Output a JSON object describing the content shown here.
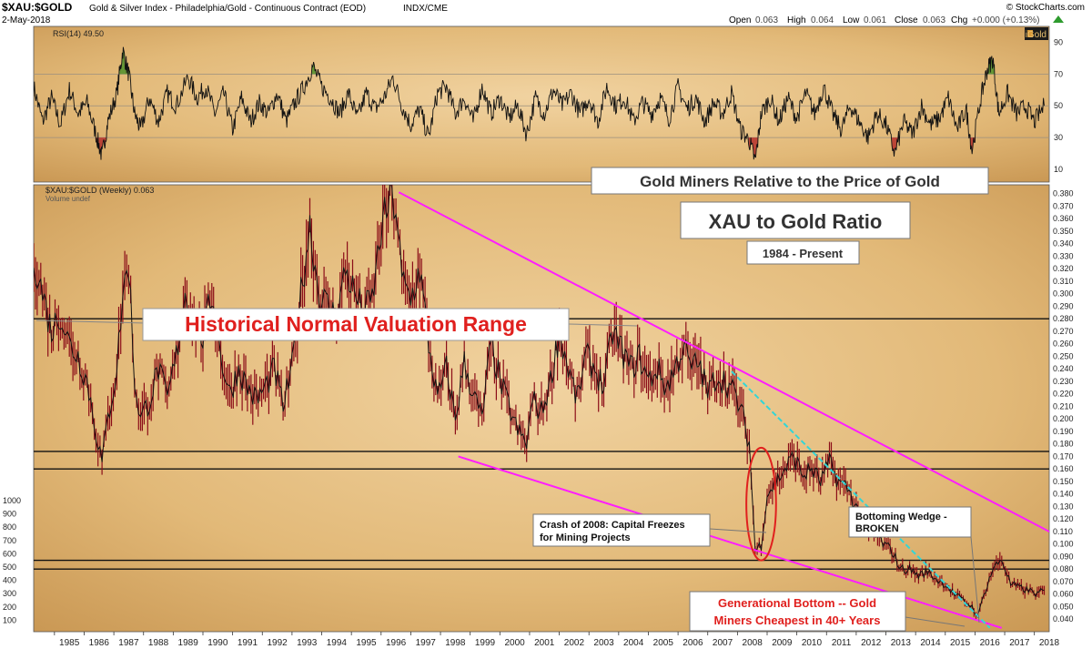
{
  "header": {
    "symbol": "$XAU:$GOLD",
    "description": "Gold & Silver Index - Philadelphia/Gold - Continuous Contract (EOD)",
    "exchange": "INDX/CME",
    "date": "2-May-2018",
    "source": "© StockCharts.com",
    "open_label": "Open",
    "open": "0.063",
    "high_label": "High",
    "high": "0.064",
    "low_label": "Low",
    "low": "0.061",
    "close_label": "Close",
    "close": "0.063",
    "chg_label": "Chg",
    "chg": "+0.000 (+0.13%)",
    "logo": "iGold"
  },
  "rsi_panel": {
    "label": "RSI(14) 49.50",
    "axis_ticks": [
      90,
      70,
      50,
      30,
      10
    ],
    "reference_lines": [
      70,
      50,
      30
    ],
    "control_points": [
      [
        1984.3,
        62
      ],
      [
        1984.6,
        40
      ],
      [
        1984.9,
        55
      ],
      [
        1985.2,
        38
      ],
      [
        1985.5,
        60
      ],
      [
        1985.8,
        45
      ],
      [
        1986.1,
        52
      ],
      [
        1986.4,
        32
      ],
      [
        1986.6,
        18
      ],
      [
        1986.8,
        40
      ],
      [
        1987.1,
        58
      ],
      [
        1987.3,
        85
      ],
      [
        1987.5,
        70
      ],
      [
        1987.7,
        45
      ],
      [
        1987.9,
        35
      ],
      [
        1988.2,
        55
      ],
      [
        1988.5,
        40
      ],
      [
        1988.8,
        58
      ],
      [
        1989.1,
        50
      ],
      [
        1989.5,
        68
      ],
      [
        1989.8,
        55
      ],
      [
        1990.1,
        62
      ],
      [
        1990.4,
        45
      ],
      [
        1990.7,
        58
      ],
      [
        1991.0,
        35
      ],
      [
        1991.3,
        55
      ],
      [
        1991.6,
        40
      ],
      [
        1991.9,
        52
      ],
      [
        1992.2,
        45
      ],
      [
        1992.5,
        58
      ],
      [
        1992.8,
        40
      ],
      [
        1993.1,
        52
      ],
      [
        1993.4,
        62
      ],
      [
        1993.7,
        75
      ],
      [
        1994.0,
        62
      ],
      [
        1994.3,
        55
      ],
      [
        1994.6,
        45
      ],
      [
        1994.9,
        58
      ],
      [
        1995.2,
        42
      ],
      [
        1995.5,
        58
      ],
      [
        1995.8,
        48
      ],
      [
        1996.1,
        55
      ],
      [
        1996.4,
        68
      ],
      [
        1996.7,
        50
      ],
      [
        1997.0,
        38
      ],
      [
        1997.3,
        48
      ],
      [
        1997.6,
        30
      ],
      [
        1997.9,
        58
      ],
      [
        1998.2,
        62
      ],
      [
        1998.5,
        45
      ],
      [
        1998.8,
        55
      ],
      [
        1999.1,
        40
      ],
      [
        1999.4,
        62
      ],
      [
        1999.7,
        45
      ],
      [
        2000.0,
        55
      ],
      [
        2000.3,
        42
      ],
      [
        2000.6,
        50
      ],
      [
        2000.9,
        32
      ],
      [
        2001.2,
        55
      ],
      [
        2001.5,
        45
      ],
      [
        2001.8,
        60
      ],
      [
        2002.1,
        50
      ],
      [
        2002.4,
        58
      ],
      [
        2002.7,
        45
      ],
      [
        2003.0,
        55
      ],
      [
        2003.3,
        40
      ],
      [
        2003.6,
        62
      ],
      [
        2003.9,
        50
      ],
      [
        2004.2,
        55
      ],
      [
        2004.5,
        40
      ],
      [
        2004.8,
        52
      ],
      [
        2005.1,
        45
      ],
      [
        2005.4,
        55
      ],
      [
        2005.7,
        42
      ],
      [
        2006.0,
        62
      ],
      [
        2006.3,
        48
      ],
      [
        2006.6,
        55
      ],
      [
        2006.9,
        40
      ],
      [
        2007.2,
        52
      ],
      [
        2007.5,
        45
      ],
      [
        2007.8,
        58
      ],
      [
        2008.1,
        35
      ],
      [
        2008.4,
        28
      ],
      [
        2008.6,
        15
      ],
      [
        2008.8,
        45
      ],
      [
        2009.1,
        55
      ],
      [
        2009.4,
        40
      ],
      [
        2009.7,
        55
      ],
      [
        2010.0,
        42
      ],
      [
        2010.3,
        58
      ],
      [
        2010.6,
        45
      ],
      [
        2010.9,
        62
      ],
      [
        2011.2,
        45
      ],
      [
        2011.5,
        35
      ],
      [
        2011.8,
        50
      ],
      [
        2012.1,
        40
      ],
      [
        2012.4,
        30
      ],
      [
        2012.7,
        45
      ],
      [
        2013.0,
        38
      ],
      [
        2013.3,
        20
      ],
      [
        2013.6,
        40
      ],
      [
        2013.9,
        32
      ],
      [
        2014.2,
        50
      ],
      [
        2014.5,
        38
      ],
      [
        2014.8,
        42
      ],
      [
        2015.1,
        55
      ],
      [
        2015.4,
        35
      ],
      [
        2015.7,
        48
      ],
      [
        2015.9,
        22
      ],
      [
        2016.2,
        55
      ],
      [
        2016.4,
        72
      ],
      [
        2016.6,
        80
      ],
      [
        2016.8,
        45
      ],
      [
        2017.1,
        58
      ],
      [
        2017.4,
        45
      ],
      [
        2017.7,
        50
      ],
      [
        2018.0,
        40
      ],
      [
        2018.33,
        50
      ]
    ]
  },
  "chart_data": {
    "type": "line",
    "title": "Gold Miners Relative to the Price of Gold",
    "subtitle": "XAU to Gold Ratio",
    "date_range": "1984 - Present",
    "series_label": "$XAU:$GOLD (Weekly) 0.063",
    "volume_label": "Volume undef",
    "xlim": [
      1984.3,
      2018.5
    ],
    "ylim": [
      0.03,
      0.387
    ],
    "x_ticks": [
      1985,
      1986,
      1987,
      1988,
      1989,
      1990,
      1991,
      1992,
      1993,
      1994,
      1995,
      1996,
      1997,
      1998,
      1999,
      2000,
      2001,
      2002,
      2003,
      2004,
      2005,
      2006,
      2007,
      2008,
      2009,
      2010,
      2011,
      2012,
      2013,
      2014,
      2015,
      2016,
      2017,
      2018
    ],
    "y_ticks": [
      0.04,
      0.05,
      0.06,
      0.07,
      0.08,
      0.09,
      0.1,
      0.11,
      0.12,
      0.13,
      0.14,
      0.15,
      0.16,
      0.17,
      0.18,
      0.19,
      0.2,
      0.21,
      0.22,
      0.23,
      0.24,
      0.25,
      0.26,
      0.27,
      0.28,
      0.29,
      0.3,
      0.31,
      0.32,
      0.33,
      0.34,
      0.35,
      0.36,
      0.37,
      0.38
    ],
    "volume_ticks": [
      1000,
      900,
      800,
      700,
      600,
      500,
      400,
      300,
      200,
      100
    ],
    "series": [
      {
        "name": "$XAU:$GOLD",
        "x": [
          1984.3,
          1984.6,
          1984.9,
          1985.2,
          1985.5,
          1985.8,
          1986.1,
          1986.4,
          1986.6,
          1986.8,
          1987.1,
          1987.3,
          1987.5,
          1987.7,
          1987.9,
          1988.2,
          1988.5,
          1988.8,
          1989.1,
          1989.4,
          1989.7,
          1990.0,
          1990.3,
          1990.6,
          1990.9,
          1991.2,
          1991.5,
          1991.8,
          1992.1,
          1992.4,
          1992.7,
          1993.0,
          1993.3,
          1993.6,
          1993.9,
          1994.2,
          1994.5,
          1994.8,
          1995.1,
          1995.4,
          1995.7,
          1996.0,
          1996.3,
          1996.5,
          1996.7,
          1997.0,
          1997.3,
          1997.6,
          1997.9,
          1998.2,
          1998.5,
          1998.8,
          1999.1,
          1999.4,
          1999.7,
          2000.0,
          2000.3,
          2000.6,
          2000.9,
          2001.1,
          2001.4,
          2001.7,
          2002.0,
          2002.3,
          2002.6,
          2002.9,
          2003.2,
          2003.5,
          2003.8,
          2004.1,
          2004.4,
          2004.7,
          2005.0,
          2005.3,
          2005.6,
          2005.9,
          2006.2,
          2006.4,
          2006.7,
          2007.0,
          2007.3,
          2007.6,
          2007.9,
          2008.2,
          2008.4,
          2008.6,
          2008.8,
          2009.0,
          2009.3,
          2009.6,
          2009.9,
          2010.2,
          2010.5,
          2010.8,
          2011.1,
          2011.4,
          2011.7,
          2012.0,
          2012.3,
          2012.6,
          2012.9,
          2013.2,
          2013.5,
          2013.8,
          2014.1,
          2014.4,
          2014.7,
          2015.0,
          2015.3,
          2015.6,
          2015.9,
          2016.1,
          2016.3,
          2016.6,
          2016.9,
          2017.2,
          2017.5,
          2017.8,
          2018.1,
          2018.33
        ],
        "y": [
          0.33,
          0.3,
          0.27,
          0.285,
          0.26,
          0.25,
          0.23,
          0.19,
          0.165,
          0.2,
          0.24,
          0.3,
          0.325,
          0.23,
          0.2,
          0.215,
          0.24,
          0.215,
          0.25,
          0.3,
          0.28,
          0.265,
          0.3,
          0.25,
          0.22,
          0.24,
          0.225,
          0.215,
          0.225,
          0.24,
          0.21,
          0.24,
          0.3,
          0.355,
          0.3,
          0.29,
          0.28,
          0.32,
          0.3,
          0.285,
          0.295,
          0.35,
          0.375,
          0.37,
          0.31,
          0.295,
          0.32,
          0.26,
          0.215,
          0.24,
          0.2,
          0.245,
          0.22,
          0.2,
          0.26,
          0.23,
          0.21,
          0.19,
          0.18,
          0.215,
          0.205,
          0.23,
          0.27,
          0.24,
          0.215,
          0.25,
          0.24,
          0.225,
          0.27,
          0.255,
          0.24,
          0.25,
          0.23,
          0.24,
          0.225,
          0.24,
          0.26,
          0.24,
          0.245,
          0.22,
          0.235,
          0.23,
          0.22,
          0.2,
          0.18,
          0.095,
          0.1,
          0.14,
          0.15,
          0.16,
          0.17,
          0.155,
          0.16,
          0.15,
          0.165,
          0.15,
          0.145,
          0.13,
          0.11,
          0.11,
          0.1,
          0.095,
          0.08,
          0.08,
          0.075,
          0.078,
          0.072,
          0.068,
          0.06,
          0.055,
          0.05,
          0.042,
          0.06,
          0.08,
          0.088,
          0.068,
          0.065,
          0.063,
          0.06,
          0.063
        ]
      }
    ],
    "horizontal_lines": [
      0.28,
      0.174,
      0.16,
      0.087,
      0.08
    ],
    "trendlines": [
      {
        "name": "upper-resistance-trendline",
        "color": "#ff1dff",
        "from": [
          1996.6,
          0.381
        ],
        "to": [
          2018.5,
          0.11
        ]
      },
      {
        "name": "lower-wedge-trendline",
        "color": "#ff1dff",
        "from": [
          1998.6,
          0.17
        ],
        "to": [
          2016.9,
          0.033
        ]
      },
      {
        "name": "bottoming-wedge-trendline",
        "color": "#33d6d6",
        "from": [
          2007.8,
          0.238
        ],
        "to": [
          2016.5,
          0.033
        ]
      }
    ],
    "crash_ellipse": {
      "x": 2008.8,
      "y": 0.132,
      "x_radius": 0.5,
      "y_radius": 0.045
    }
  },
  "annotations": {
    "historical_range": "Historical Normal Valuation Range",
    "crash_line1": "Crash of 2008: Capital Freezes",
    "crash_line2": "for Mining Projects",
    "wedge_line1": "Bottoming Wedge -",
    "wedge_line2": "BROKEN",
    "bottom_line1": "Generational Bottom -- Gold",
    "bottom_line2": "Miners Cheapest in 40+ Years"
  },
  "colors": {
    "background": "#e0b774",
    "price_bar": "#8b0d18",
    "price_line": "#111111",
    "rsi_fill_high": "#4f8f2a",
    "rsi_fill_low": "#b5302b",
    "annotation_red": "#e0201e",
    "trendline_magenta": "#ff1dff",
    "trendline_cyan": "#33d6d6"
  }
}
